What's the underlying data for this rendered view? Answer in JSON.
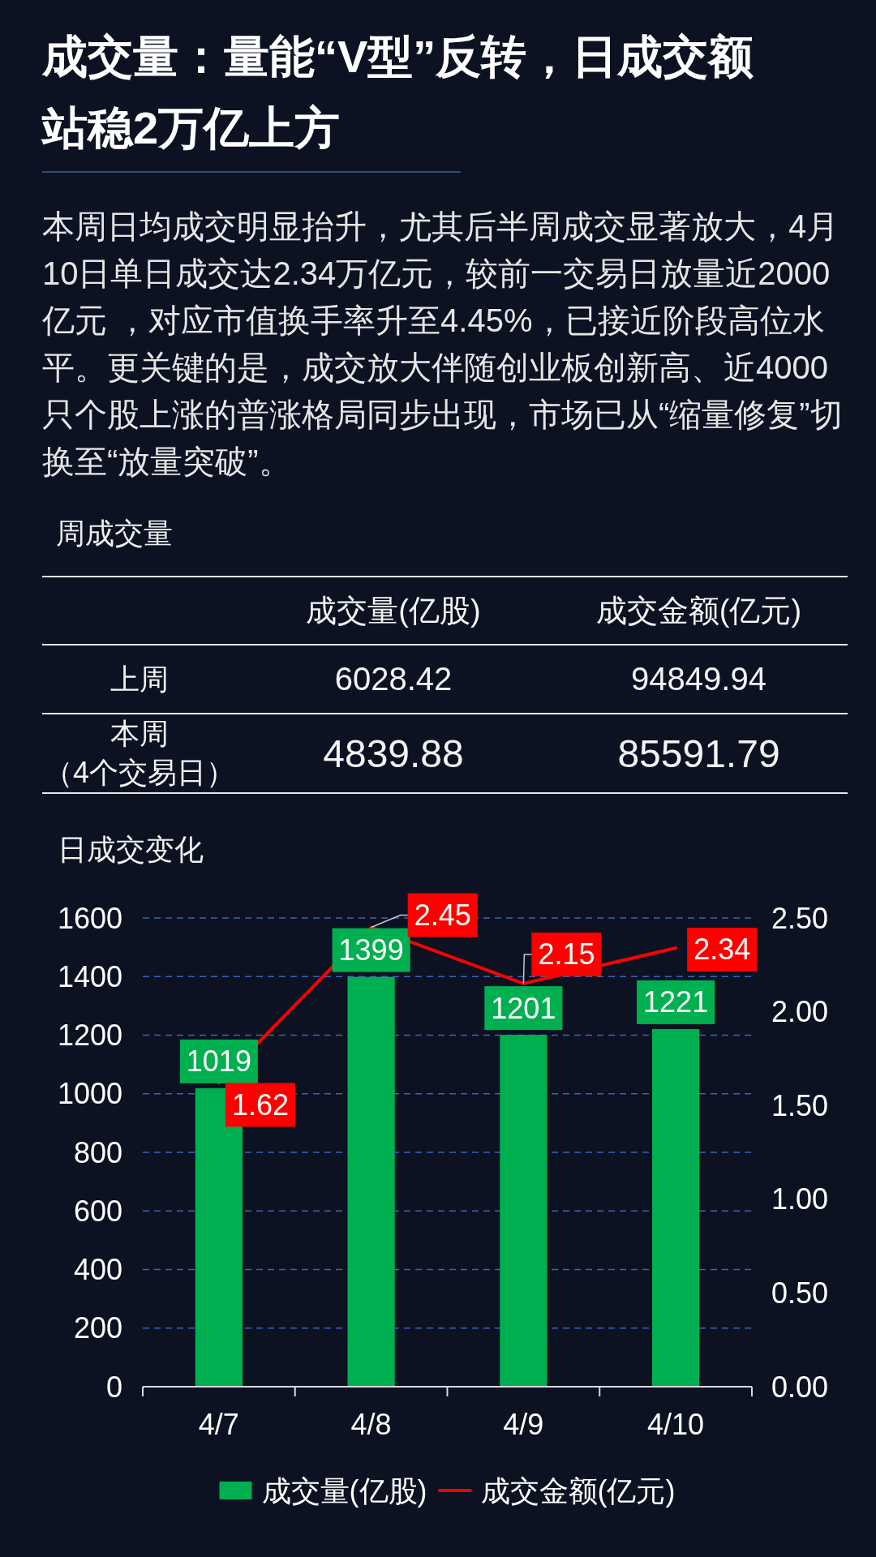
{
  "chart_data": [
    {
      "type": "other",
      "title": "成交量：量能“V型”反转，日成交额站稳2万亿上方",
      "subtitle": "本周日均成交明显抬升，尤其后半周成交显著放大，4月10日单日成交达2.34万亿元，较前一交易日放量近2000亿元 ，对应市值换手率升至4.45%，已接近阶段高位水平。更关键的是，成交放大伴随创业板创新高、近4000只个股上涨的普涨格局同步出现，市场已从“缩量修复”切换至“放量突破”。"
    },
    {
      "type": "other",
      "title": "周成交量",
      "categories": [
        "上周",
        "本周（4个交易日）"
      ],
      "series": [
        {
          "name": "成交量(亿股)",
          "values": [
            6028.42,
            4839.88
          ]
        },
        {
          "name": "成交金额(亿元)",
          "values": [
            94849.94,
            85591.79
          ]
        }
      ],
      "data_labels": true
    },
    {
      "type": "bar",
      "title": "日成交变化",
      "categories": [
        "4/7",
        "4/8",
        "4/9",
        "4/10"
      ],
      "series": [
        {
          "name": "成交量(亿股)",
          "color": "#00b050",
          "values": [
            1019,
            1399,
            1201,
            1221
          ]
        },
        {
          "name": "成交金额(亿元)",
          "type": "line",
          "axis": "y2",
          "color": "#ff0000",
          "values": [
            1.62,
            2.45,
            2.15,
            2.34
          ]
        }
      ],
      "ylim": [
        0,
        1600
      ],
      "yticks": [
        0,
        200,
        400,
        600,
        800,
        1000,
        1200,
        1400,
        1600
      ],
      "y2lim": [
        0,
        2.5
      ],
      "y2ticks": [
        {
          "value": 0,
          "label": "0.00"
        },
        {
          "value": 0.5,
          "label": "0.50"
        },
        {
          "value": 1,
          "label": "1.00"
        },
        {
          "value": 1.5,
          "label": "1.50"
        },
        {
          "value": 2,
          "label": "2.00"
        },
        {
          "value": 2.5,
          "label": "2.50"
        }
      ],
      "grid": "y",
      "legend": "bottom",
      "data_labels": true
    }
  ]
}
